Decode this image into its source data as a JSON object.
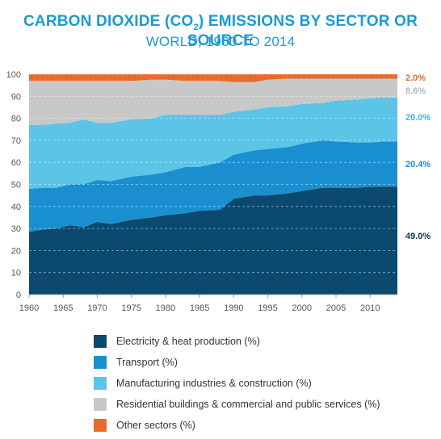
{
  "title_main": "CARBON DIOXIDE (CO",
  "title_sub": "2",
  "title_tail": ") EMISSIONS BY SECTOR OR SOURCE",
  "subtitle": "WORLD, 1960 TO 2014",
  "chart_data": {
    "type": "area",
    "stacked": true,
    "title": "CARBON DIOXIDE (CO2) EMISSIONS BY SECTOR OR SOURCE",
    "subtitle": "WORLD, 1960 TO 2014",
    "xlabel": "",
    "ylabel": "",
    "xlim": [
      1960,
      2014
    ],
    "ylim": [
      0,
      100
    ],
    "x_ticks": [
      1960,
      1965,
      1970,
      1975,
      1980,
      1985,
      1990,
      1995,
      2000,
      2005,
      2010
    ],
    "y_ticks": [
      0,
      10,
      20,
      30,
      40,
      50,
      60,
      70,
      80,
      90,
      100
    ],
    "grid": "horizontal-dashed",
    "legend_position": "bottom",
    "x": [
      1960,
      1962,
      1964,
      1966,
      1968,
      1970,
      1972,
      1975,
      1978,
      1980,
      1983,
      1985,
      1988,
      1990,
      1993,
      1995,
      1998,
      2000,
      2003,
      2005,
      2008,
      2010,
      2012,
      2014
    ],
    "series": [
      {
        "name": "Electricity & heat production (%)",
        "color": "#0b4a6e",
        "values": [
          28.5,
          29.5,
          30,
          31.5,
          30.5,
          33,
          32,
          34,
          35,
          36,
          37,
          38,
          38.5,
          43.5,
          45,
          45,
          46,
          47,
          48.5,
          48.5,
          48.5,
          49,
          49,
          49
        ]
      },
      {
        "name": "Transport (%)",
        "color": "#1a8fd0",
        "values": [
          19.5,
          19,
          18.5,
          18.5,
          19.5,
          19,
          19.5,
          19.5,
          19.5,
          19.5,
          21,
          20,
          21.5,
          20,
          20.5,
          21,
          21,
          21.5,
          21.5,
          21,
          20.5,
          20,
          20.5,
          20.4
        ]
      },
      {
        "name": "Manufacturing industries & construction (%)",
        "color": "#5cc4e6",
        "values": [
          29,
          28.5,
          29,
          28,
          29.5,
          26,
          26.5,
          26,
          25.5,
          26,
          23.5,
          23.5,
          21.5,
          19.5,
          18.5,
          19,
          18.5,
          18,
          17,
          18.5,
          19.5,
          20,
          20,
          20
        ]
      },
      {
        "name": "Residential buildings & commercial and public services (%)",
        "color": "#c8c8c8",
        "values": [
          20,
          20,
          19.5,
          19,
          17.5,
          19,
          19,
          17.5,
          17.5,
          16,
          15.5,
          15.5,
          15.5,
          13.5,
          12.5,
          12.5,
          12.5,
          11.5,
          11,
          10,
          9.5,
          9,
          8.5,
          8.6
        ]
      },
      {
        "name": "Other sectors (%)",
        "color": "#e96b2b",
        "values": [
          3,
          3,
          3,
          3,
          3,
          3,
          3,
          3,
          2.5,
          2.5,
          3,
          3,
          3,
          3.5,
          3.5,
          2.5,
          2,
          2,
          2,
          2,
          2,
          2,
          2,
          2.0
        ]
      }
    ],
    "end_labels": [
      "49.0%",
      "20.4%",
      "20.0%",
      "8.6%",
      "2.0%"
    ]
  }
}
